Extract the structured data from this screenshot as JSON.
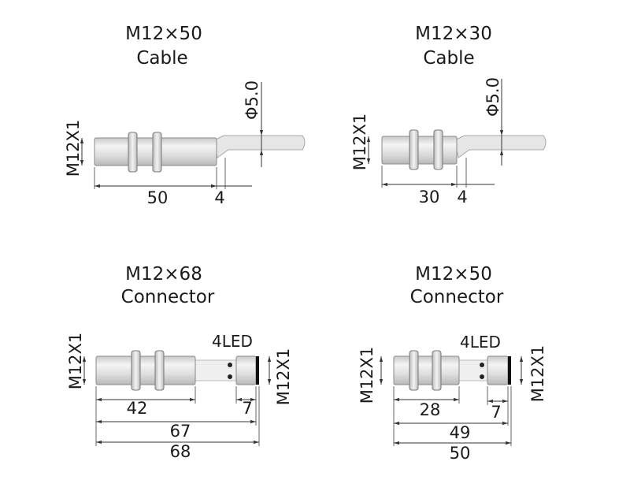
{
  "diagrams": [
    {
      "title_line1": "M12×50",
      "title_line2": "Cable",
      "thread_label": "M12X1",
      "cable_diameter_label": "Φ5.0",
      "body_length": "50",
      "gap_length": "4"
    },
    {
      "title_line1": "M12×30",
      "title_line2": "Cable",
      "thread_label": "M12X1",
      "cable_diameter_label": "Φ5.0",
      "body_length": "30",
      "gap_length": "4"
    },
    {
      "title_line1": "M12×68",
      "title_line2": "Connector",
      "thread_label_left": "M12X1",
      "thread_label_right": "M12X1",
      "led_label": "4LED",
      "body_length": "42",
      "connector_length": "7",
      "length_inner": "67",
      "length_total": "68"
    },
    {
      "title_line1": "M12×50",
      "title_line2": "Connector",
      "thread_label_left": "M12X1",
      "thread_label_right": "M12X1",
      "led_label": "4LED",
      "body_length": "28",
      "connector_length": "7",
      "length_inner": "49",
      "length_total": "50"
    }
  ]
}
